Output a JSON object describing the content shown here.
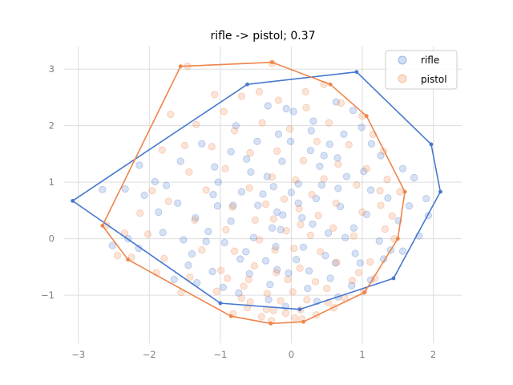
{
  "chart_data": {
    "type": "scatter",
    "title": "rifle -> pistol; 0.37",
    "xlabel": "",
    "ylabel": "",
    "xlim": [
      -3.2,
      2.4
    ],
    "ylim": [
      -1.85,
      3.4
    ],
    "xticks": [
      -3,
      -2,
      -1,
      0,
      1,
      2
    ],
    "yticks": [
      -1,
      0,
      1,
      2,
      3
    ],
    "grid": true,
    "legend_position": "top-right",
    "series": [
      {
        "name": "rifle",
        "color": "#4878cf",
        "hull": [
          [
            -3.08,
            0.67
          ],
          [
            -0.62,
            2.73
          ],
          [
            0.92,
            2.95
          ],
          [
            1.97,
            1.67
          ],
          [
            2.1,
            0.83
          ],
          [
            1.44,
            -0.7
          ],
          [
            0.12,
            -1.25
          ],
          [
            -1.0,
            -1.14
          ]
        ],
        "points": [
          [
            -2.66,
            0.87
          ],
          [
            -2.34,
            0.88
          ],
          [
            -2.14,
            1.3
          ],
          [
            -1.2,
            -0.05
          ],
          [
            -1.6,
            0.63
          ],
          [
            -1.81,
            0.11
          ],
          [
            -2.15,
            -0.17
          ],
          [
            -1.76,
            0.94
          ],
          [
            -1.08,
            1.27
          ],
          [
            -0.63,
            1.41
          ],
          [
            -0.07,
            2.3
          ],
          [
            0.03,
            2.25
          ],
          [
            0.63,
            2.42
          ],
          [
            0.87,
            2.27
          ],
          [
            0.99,
            1.97
          ],
          [
            1.26,
            1.47
          ],
          [
            1.57,
            1.24
          ],
          [
            1.9,
            0.71
          ],
          [
            1.93,
            0.41
          ],
          [
            1.8,
            0.05
          ],
          [
            1.57,
            -0.22
          ],
          [
            1.4,
            -0.2
          ],
          [
            1.12,
            -0.73
          ],
          [
            0.66,
            -1.03
          ],
          [
            0.36,
            -1.11
          ],
          [
            -0.08,
            -1.2
          ],
          [
            -0.32,
            -1.08
          ],
          [
            -0.74,
            -0.96
          ],
          [
            -1.11,
            -0.58
          ],
          [
            -1.45,
            -0.47
          ],
          [
            -1.52,
            -0.02
          ],
          [
            -1.35,
            0.37
          ],
          [
            -1.04,
            0.58
          ],
          [
            -0.85,
            0.31
          ],
          [
            -0.47,
            0.59
          ],
          [
            -0.25,
            0.92
          ],
          [
            -0.15,
            0.16
          ],
          [
            0.15,
            0.37
          ],
          [
            0.35,
            0.71
          ],
          [
            0.69,
            0.57
          ],
          [
            0.88,
            0.19
          ],
          [
            0.9,
            -0.26
          ],
          [
            0.62,
            -0.43
          ],
          [
            0.25,
            -0.57
          ],
          [
            -0.04,
            -0.61
          ],
          [
            -0.36,
            -0.39
          ],
          [
            -0.72,
            -0.36
          ],
          [
            -0.94,
            -0.07
          ],
          [
            -0.53,
            0.02
          ],
          [
            -0.2,
            0.47
          ],
          [
            0.1,
            0.97
          ],
          [
            0.4,
            1.28
          ],
          [
            0.54,
            1.67
          ],
          [
            0.28,
            1.91
          ],
          [
            -0.18,
            1.85
          ],
          [
            -0.48,
            1.72
          ],
          [
            -0.85,
            1.54
          ],
          [
            -1.26,
            1.68
          ],
          [
            -1.56,
            1.37
          ],
          [
            -1.92,
            1.01
          ],
          [
            -2.07,
            0.77
          ],
          [
            -1.87,
            0.47
          ],
          [
            -1.4,
            -0.27
          ],
          [
            -1.17,
            0.13
          ],
          [
            -0.59,
            -0.62
          ],
          [
            -0.3,
            -0.81
          ],
          [
            0.23,
            -0.88
          ],
          [
            0.55,
            -0.7
          ],
          [
            0.76,
            0.02
          ],
          [
            1.06,
            0.43
          ],
          [
            1.12,
            0.86
          ],
          [
            0.78,
            1.1
          ],
          [
            0.43,
            0.95
          ],
          [
            0.1,
            0.63
          ],
          [
            -0.27,
            0.19
          ],
          [
            -0.7,
            0.83
          ],
          [
            -1.03,
            1.0
          ],
          [
            -0.57,
            1.18
          ],
          [
            -0.13,
            1.37
          ],
          [
            0.27,
            1.56
          ],
          [
            0.65,
            1.43
          ],
          [
            1.02,
            1.19
          ],
          [
            1.36,
            0.72
          ],
          [
            1.51,
            0.32
          ],
          [
            1.24,
            -0.04
          ],
          [
            0.97,
            -0.43
          ],
          [
            0.48,
            -0.3
          ],
          [
            0.07,
            -0.37
          ],
          [
            -0.22,
            -0.14
          ],
          [
            -0.64,
            -0.23
          ],
          [
            -0.82,
            0.59
          ],
          [
            -0.4,
            0.79
          ],
          [
            0.0,
            0.82
          ],
          [
            0.3,
            0.26
          ],
          [
            0.52,
            0.1
          ],
          [
            0.17,
            -0.15
          ],
          [
            -0.12,
            0.42
          ],
          [
            -0.34,
            1.1
          ],
          [
            -0.78,
            2.0
          ],
          [
            -0.33,
            2.35
          ],
          [
            0.31,
            2.08
          ],
          [
            0.74,
            1.85
          ],
          [
            1.13,
            1.68
          ],
          [
            -1.65,
            -0.72
          ],
          [
            -2.3,
            0.0
          ],
          [
            -2.52,
            -0.12
          ],
          [
            -1.33,
            -0.78
          ],
          [
            -0.96,
            -0.86
          ],
          [
            0.85,
            -0.83
          ],
          [
            1.3,
            -0.36
          ],
          [
            1.66,
            0.58
          ],
          [
            1.73,
            1.08
          ],
          [
            -0.01,
            1.72
          ],
          [
            0.46,
            1.47
          ],
          [
            -1.1,
            0.78
          ],
          [
            -0.2,
            -0.55
          ],
          [
            0.66,
            0.89
          ]
        ]
      },
      {
        "name": "pistol",
        "color": "#ee854a",
        "hull": [
          [
            -1.56,
            3.05
          ],
          [
            -0.27,
            3.12
          ],
          [
            0.55,
            2.73
          ],
          [
            1.06,
            2.17
          ],
          [
            1.6,
            0.83
          ],
          [
            1.5,
            0.0
          ],
          [
            1.03,
            -0.95
          ],
          [
            0.17,
            -1.47
          ],
          [
            -0.29,
            -1.5
          ],
          [
            -0.85,
            -1.37
          ],
          [
            -2.3,
            -0.37
          ],
          [
            -2.66,
            0.23
          ]
        ],
        "points": [
          [
            -1.46,
            3.05
          ],
          [
            -0.27,
            3.1
          ],
          [
            0.46,
            2.73
          ],
          [
            1.0,
            2.17
          ],
          [
            1.3,
            1.55
          ],
          [
            1.53,
            0.83
          ],
          [
            1.45,
            0.0
          ],
          [
            1.02,
            -0.93
          ],
          [
            0.15,
            -1.42
          ],
          [
            -0.28,
            -1.45
          ],
          [
            -0.82,
            -1.33
          ],
          [
            -2.25,
            -0.33
          ],
          [
            -2.6,
            0.24
          ],
          [
            -2.13,
            0.45
          ],
          [
            -1.96,
            0.85
          ],
          [
            -1.82,
            1.57
          ],
          [
            -1.34,
            2.02
          ],
          [
            -1.08,
            2.55
          ],
          [
            -0.7,
            2.52
          ],
          [
            -0.18,
            2.45
          ],
          [
            0.21,
            2.32
          ],
          [
            0.53,
            2.05
          ],
          [
            0.81,
            1.66
          ],
          [
            1.06,
            1.24
          ],
          [
            1.26,
            0.59
          ],
          [
            1.32,
            0.17
          ],
          [
            1.11,
            -0.41
          ],
          [
            0.86,
            -0.74
          ],
          [
            0.52,
            -1.13
          ],
          [
            0.13,
            -1.26
          ],
          [
            -0.25,
            -1.27
          ],
          [
            -0.62,
            -1.22
          ],
          [
            -1.05,
            -0.93
          ],
          [
            -1.43,
            -0.68
          ],
          [
            -1.79,
            -0.35
          ],
          [
            -2.02,
            0.08
          ],
          [
            -1.73,
            0.66
          ],
          [
            -1.44,
            1.18
          ],
          [
            -1.12,
            1.63
          ],
          [
            -0.8,
            1.91
          ],
          [
            -0.41,
            2.05
          ],
          [
            -0.02,
            1.94
          ],
          [
            0.36,
            1.72
          ],
          [
            0.66,
            1.32
          ],
          [
            0.92,
            0.95
          ],
          [
            1.0,
            0.47
          ],
          [
            0.88,
            0.05
          ],
          [
            0.64,
            -0.42
          ],
          [
            0.34,
            -0.76
          ],
          [
            0.02,
            -0.94
          ],
          [
            -0.34,
            -0.97
          ],
          [
            -0.67,
            -0.84
          ],
          [
            -0.99,
            -0.56
          ],
          [
            -1.26,
            -0.2
          ],
          [
            -1.36,
            0.33
          ],
          [
            -1.2,
            0.86
          ],
          [
            -0.93,
            1.24
          ],
          [
            -0.58,
            1.52
          ],
          [
            -0.2,
            1.55
          ],
          [
            0.17,
            1.38
          ],
          [
            0.46,
            1.06
          ],
          [
            0.63,
            0.63
          ],
          [
            0.59,
            0.19
          ],
          [
            0.41,
            -0.23
          ],
          [
            0.12,
            -0.52
          ],
          [
            -0.21,
            -0.6
          ],
          [
            -0.52,
            -0.48
          ],
          [
            -0.8,
            -0.22
          ],
          [
            -0.92,
            0.16
          ],
          [
            -0.83,
            0.56
          ],
          [
            -0.59,
            0.9
          ],
          [
            -0.27,
            1.09
          ],
          [
            0.06,
            1.04
          ],
          [
            0.29,
            0.78
          ],
          [
            0.38,
            0.41
          ],
          [
            0.27,
            0.06
          ],
          [
            0.04,
            -0.17
          ],
          [
            -0.23,
            -0.2
          ],
          [
            -0.45,
            -0.02
          ],
          [
            -0.51,
            0.33
          ],
          [
            -0.36,
            0.61
          ],
          [
            -0.1,
            0.7
          ],
          [
            0.11,
            0.53
          ],
          [
            0.13,
            0.25
          ],
          [
            -0.07,
            0.14
          ],
          [
            -0.25,
            0.35
          ],
          [
            -0.08,
            -1.32
          ],
          [
            -0.42,
            -1.38
          ],
          [
            0.35,
            -1.35
          ],
          [
            0.6,
            -1.22
          ],
          [
            -0.58,
            -1.12
          ],
          [
            -0.15,
            -1.1
          ],
          [
            0.22,
            -1.08
          ],
          [
            -0.35,
            -1.25
          ],
          [
            0.05,
            -1.4
          ],
          [
            -0.7,
            -1.05
          ],
          [
            0.75,
            -1.05
          ],
          [
            -0.9,
            -0.7
          ],
          [
            0.95,
            -0.6
          ],
          [
            -0.05,
            -0.72
          ],
          [
            -0.6,
            -0.72
          ],
          [
            0.5,
            -0.88
          ],
          [
            -1.5,
            1.65
          ],
          [
            -1.7,
            2.2
          ],
          [
            -0.95,
            2.25
          ],
          [
            -0.45,
            2.6
          ],
          [
            0.2,
            2.6
          ],
          [
            0.7,
            2.4
          ],
          [
            1.15,
            1.85
          ],
          [
            1.35,
            1.05
          ],
          [
            -2.35,
            0.1
          ],
          [
            -2.45,
            -0.3
          ],
          [
            -1.55,
            -0.95
          ],
          [
            -1.9,
            -0.6
          ],
          [
            1.18,
            -0.7
          ],
          [
            1.42,
            0.4
          ],
          [
            1.25,
            0.85
          ]
        ]
      }
    ]
  }
}
